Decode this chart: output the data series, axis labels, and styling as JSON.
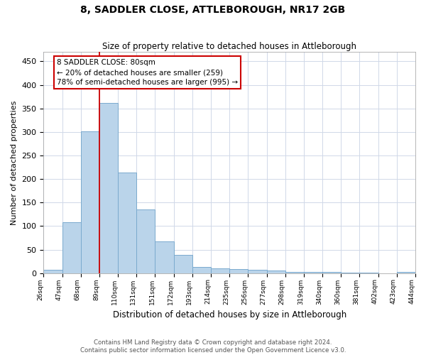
{
  "title": "8, SADDLER CLOSE, ATTLEBOROUGH, NR17 2GB",
  "subtitle": "Size of property relative to detached houses in Attleborough",
  "xlabel": "Distribution of detached houses by size in Attleborough",
  "ylabel": "Number of detached properties",
  "bar_values": [
    7,
    108,
    302,
    362,
    213,
    136,
    68,
    38,
    13,
    10,
    9,
    7,
    5,
    3,
    2,
    2,
    1,
    1,
    0,
    2
  ],
  "bar_labels": [
    "26sqm",
    "47sqm",
    "68sqm",
    "89sqm",
    "110sqm",
    "131sqm",
    "151sqm",
    "172sqm",
    "193sqm",
    "214sqm",
    "235sqm",
    "256sqm",
    "277sqm",
    "298sqm",
    "319sqm",
    "340sqm",
    "360sqm",
    "381sqm",
    "402sqm",
    "423sqm",
    "444sqm"
  ],
  "bar_color": "#bad4ea",
  "bar_edge_color": "#7aaace",
  "grid_color": "#d0d8e8",
  "annotation_box_color": "#cc0000",
  "property_line_color": "#cc0000",
  "property_line_x": 2.5,
  "annotation_text": "8 SADDLER CLOSE: 80sqm\n← 20% of detached houses are smaller (259)\n78% of semi-detached houses are larger (995) →",
  "footer_text": "Contains HM Land Registry data © Crown copyright and database right 2024.\nContains public sector information licensed under the Open Government Licence v3.0.",
  "ylim": [
    0,
    470
  ],
  "yticks": [
    0,
    50,
    100,
    150,
    200,
    250,
    300,
    350,
    400,
    450
  ],
  "figsize": [
    6.0,
    5.0
  ],
  "dpi": 100
}
